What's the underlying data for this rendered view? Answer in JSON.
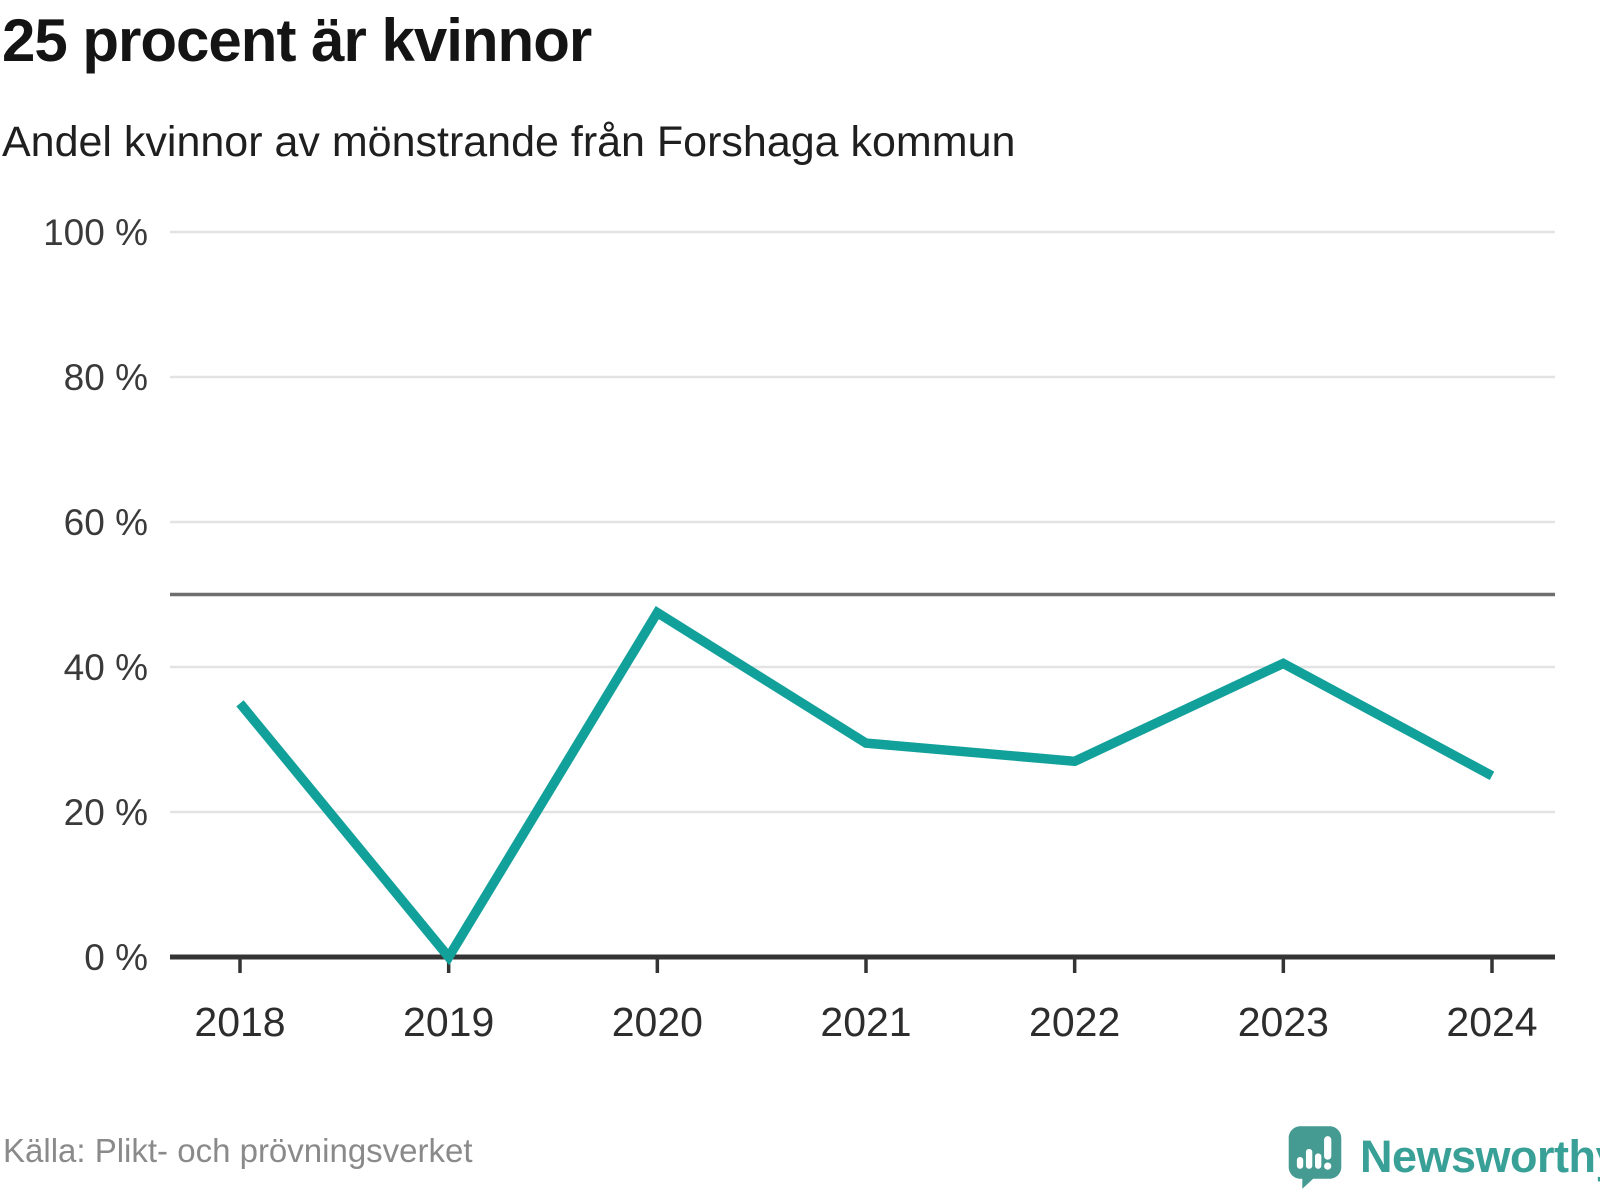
{
  "header": {
    "title": "25 procent är kvinnor",
    "subtitle": "Andel kvinnor av mönstrande från Forshaga kommun"
  },
  "chart_data": {
    "type": "line",
    "title": "25 procent är kvinnor",
    "subtitle": "Andel kvinnor av mönstrande från Forshaga kommun",
    "x": [
      "2018",
      "2019",
      "2020",
      "2021",
      "2022",
      "2023",
      "2024"
    ],
    "series": [
      {
        "name": "Andel kvinnor av mönstrande",
        "values": [
          35,
          0,
          47.5,
          29.5,
          27,
          40.5,
          25
        ]
      }
    ],
    "xlabel": "",
    "ylabel": "",
    "ylim": [
      0,
      100
    ],
    "yticks": [
      0,
      20,
      40,
      60,
      80,
      100
    ],
    "ytick_labels": [
      "0 %",
      "20 %",
      "40 %",
      "60 %",
      "80 %",
      "100 %"
    ],
    "reference_line": 50,
    "grid": "horizontal",
    "legend": "none",
    "line_color": "#12a19a"
  },
  "footer": {
    "source": "Källa: Plikt- och prövningsverket",
    "brand": "Newsworthy"
  },
  "colors": {
    "accent": "#12a19a",
    "logo_bubble": "#459a92",
    "brand_text": "#38a096",
    "grid": "#e3e3e3",
    "axis": "#343434",
    "reference_line": "#6e6e6e",
    "title_text": "#141414",
    "muted_text": "#8a8a8a"
  }
}
